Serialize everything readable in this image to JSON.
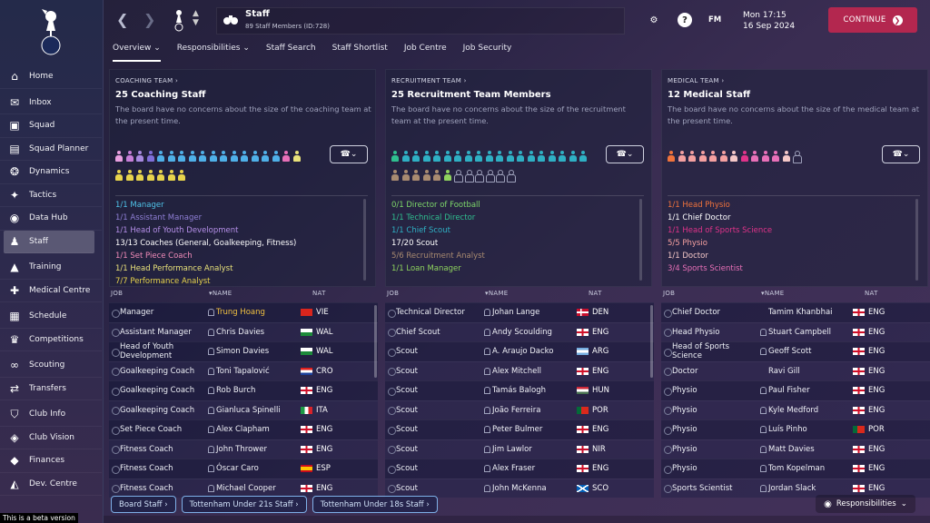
{
  "window": {
    "beta_label": "This is a beta version"
  },
  "sidebar": {
    "items": [
      {
        "label": "Home",
        "icon": "home-icon"
      },
      {
        "label": "Inbox",
        "icon": "mail-icon"
      },
      {
        "label": "Squad",
        "icon": "shirt-icon"
      },
      {
        "label": "Squad Planner",
        "icon": "planner-icon"
      },
      {
        "label": "Dynamics",
        "icon": "dynamics-icon"
      },
      {
        "label": "Tactics",
        "icon": "tactics-icon"
      },
      {
        "label": "Data Hub",
        "icon": "datahub-icon"
      },
      {
        "label": "Staff",
        "icon": "staff-icon"
      },
      {
        "label": "Training",
        "icon": "cone-icon"
      },
      {
        "label": "Medical Centre",
        "icon": "medical-icon"
      },
      {
        "label": "Schedule",
        "icon": "calendar-icon"
      },
      {
        "label": "Competitions",
        "icon": "trophy-icon"
      },
      {
        "label": "Scouting",
        "icon": "binoculars-icon"
      },
      {
        "label": "Transfers",
        "icon": "transfer-icon"
      },
      {
        "label": "Club Info",
        "icon": "shield-icon"
      },
      {
        "label": "Club Vision",
        "icon": "vision-icon"
      },
      {
        "label": "Finances",
        "icon": "finances-icon"
      },
      {
        "label": "Dev. Centre",
        "icon": "devcentre-icon"
      }
    ]
  },
  "header": {
    "title": "Staff",
    "subtitle": "89 Staff Members (ID:728)",
    "date_line1": "Mon 17:15",
    "date_line2": "16 Sep 2024",
    "fm_label": "FM",
    "continue_label": "CONTINUE"
  },
  "subnav": {
    "tabs": [
      "Overview",
      "Responsibilities",
      "Staff Search",
      "Staff Shortlist",
      "Job Centre",
      "Job Security"
    ]
  },
  "panels": [
    {
      "head": "COACHING TEAM",
      "title": "25 Coaching Staff",
      "desc": "The board have no concerns about the size of the coaching team at the present time.",
      "roles": [
        {
          "text": "1/1 Manager",
          "color": "#4fc3e8"
        },
        {
          "text": "1/1 Assistant Manager",
          "color": "#8f7fd6"
        },
        {
          "text": "1/1 Head of Youth Development",
          "color": "#b58fe8"
        },
        {
          "text": "13/13 Coaches (General, Goalkeeping, Fitness)",
          "color": "#ffffff"
        },
        {
          "text": "1/1 Set Piece Coach",
          "color": "#f08bb8"
        },
        {
          "text": "1/1 Head Performance Analyst",
          "color": "#e9e27a"
        },
        {
          "text": "7/7 Performance Analyst",
          "color": "#e8d44c"
        }
      ]
    },
    {
      "head": "RECRUITMENT TEAM",
      "title": "25 Recruitment Team Members",
      "desc": "The board have no concerns about the size of the recruitment team at the present time.",
      "roles": [
        {
          "text": "0/1 Director of Football",
          "color": "#7ed86a"
        },
        {
          "text": "1/1 Technical Director",
          "color": "#2fbf8f"
        },
        {
          "text": "1/1 Chief Scout",
          "color": "#2fb0c4"
        },
        {
          "text": "17/20 Scout",
          "color": "#ffffff"
        },
        {
          "text": "5/6 Recruitment Analyst",
          "color": "#a88a70"
        },
        {
          "text": "1/1 Loan Manager",
          "color": "#8fd45e"
        }
      ]
    },
    {
      "head": "MEDICAL TEAM",
      "title": "12 Medical Staff",
      "desc": "The board have no concerns about the size of the medical team at the present time.",
      "roles": [
        {
          "text": "1/1 Head Physio",
          "color": "#f0733c"
        },
        {
          "text": "1/1 Chief Doctor",
          "color": "#ffffff"
        },
        {
          "text": "1/1 Head of Sports Science",
          "color": "#e0338a"
        },
        {
          "text": "5/5 Physio",
          "color": "#f5a0a0"
        },
        {
          "text": "1/1 Doctor",
          "color": "#f5c8c8"
        },
        {
          "text": "3/4 Sports Scientist",
          "color": "#e870b8"
        }
      ]
    }
  ],
  "table_headers": {
    "job": "JOB",
    "name": "NAME",
    "nat": "NAT"
  },
  "tables": [
    [
      {
        "job": "Manager",
        "name": "Trung Hoang",
        "nat": "VIE",
        "highlight": true
      },
      {
        "job": "Assistant Manager",
        "name": "Chris Davies",
        "nat": "WAL"
      },
      {
        "job": "Head of Youth Development",
        "name": "Simon Davies",
        "nat": "WAL"
      },
      {
        "job": "Goalkeeping Coach",
        "name": "Toni Tapalović",
        "nat": "CRO"
      },
      {
        "job": "Goalkeeping Coach",
        "name": "Rob Burch",
        "nat": "ENG"
      },
      {
        "job": "Goalkeeping Coach",
        "name": "Gianluca Spinelli",
        "nat": "ITA"
      },
      {
        "job": "Set Piece Coach",
        "name": "Alex Clapham",
        "nat": "ENG"
      },
      {
        "job": "Fitness Coach",
        "name": "John Thrower",
        "nat": "ENG"
      },
      {
        "job": "Fitness Coach",
        "name": "Óscar Caro",
        "nat": "ESP"
      },
      {
        "job": "Fitness Coach",
        "name": "Michael Cooper",
        "nat": "ENG"
      }
    ],
    [
      {
        "job": "Technical Director",
        "name": "Johan Lange",
        "nat": "DEN"
      },
      {
        "job": "Chief Scout",
        "name": "Andy Scoulding",
        "nat": "ENG"
      },
      {
        "job": "Scout",
        "name": "A. Araujo Dacko",
        "nat": "ARG"
      },
      {
        "job": "Scout",
        "name": "Alex Mitchell",
        "nat": "ENG"
      },
      {
        "job": "Scout",
        "name": "Tamás Balogh",
        "nat": "HUN"
      },
      {
        "job": "Scout",
        "name": "João Ferreira",
        "nat": "POR"
      },
      {
        "job": "Scout",
        "name": "Peter Bulmer",
        "nat": "ENG"
      },
      {
        "job": "Scout",
        "name": "Jim Lawlor",
        "nat": "NIR"
      },
      {
        "job": "Scout",
        "name": "Alex Fraser",
        "nat": "ENG"
      },
      {
        "job": "Scout",
        "name": "John McKenna",
        "nat": "SCO"
      }
    ],
    [
      {
        "job": "Chief Doctor",
        "name": "Tamim Khanbhai",
        "nat": "ENG",
        "noicon": true
      },
      {
        "job": "Head Physio",
        "name": "Stuart Campbell",
        "nat": "ENG"
      },
      {
        "job": "Head of Sports Science",
        "name": "Geoff Scott",
        "nat": "ENG"
      },
      {
        "job": "Doctor",
        "name": "Ravi Gill",
        "nat": "ENG",
        "noicon": true
      },
      {
        "job": "Physio",
        "name": "Paul Fisher",
        "nat": "ENG"
      },
      {
        "job": "Physio",
        "name": "Kyle Medford",
        "nat": "ENG"
      },
      {
        "job": "Physio",
        "name": "Luís Pinho",
        "nat": "POR"
      },
      {
        "job": "Physio",
        "name": "Matt Davies",
        "nat": "ENG"
      },
      {
        "job": "Physio",
        "name": "Tom Kopelman",
        "nat": "ENG"
      },
      {
        "job": "Sports Scientist",
        "name": "Jordan Slack",
        "nat": "ENG"
      }
    ]
  ],
  "bottom_buttons": [
    "Board Staff",
    "Tottenham Under 21s Staff",
    "Tottenham Under 18s Staff"
  ],
  "responsibilities_label": "Responsibilities",
  "colors": {
    "continue": "#b3274f",
    "manager_name": "#f0c040"
  }
}
